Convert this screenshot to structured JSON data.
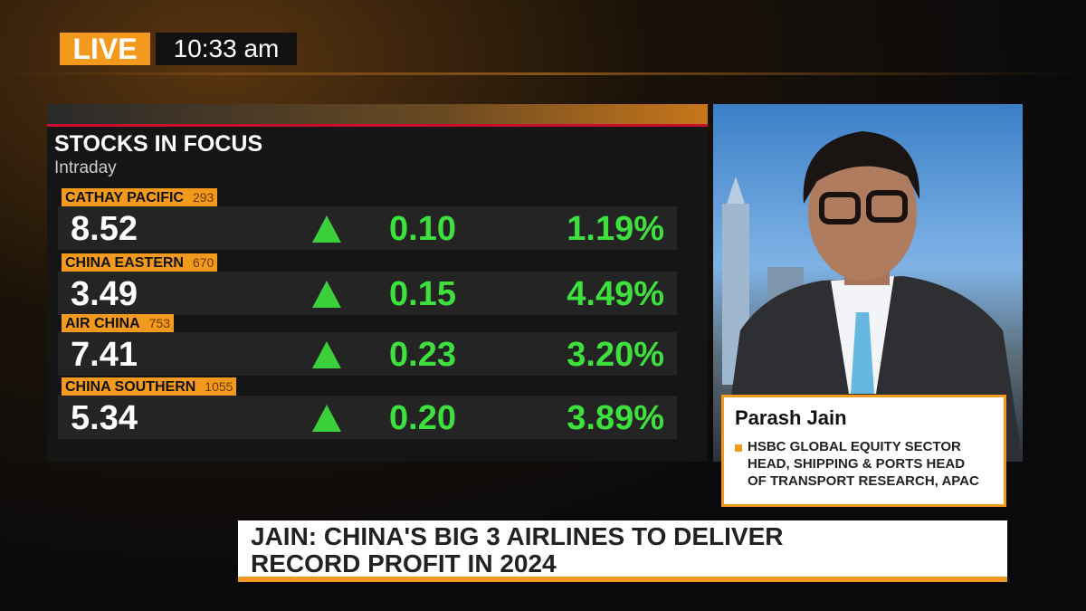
{
  "live": {
    "badge": "LIVE",
    "time": "10:33 am"
  },
  "panel": {
    "title": "STOCKS IN FOCUS",
    "subtitle": "Intraday",
    "stocks": [
      {
        "name": "CATHAY PACIFIC",
        "code": "293",
        "price": "8.52",
        "change": "0.10",
        "percent": "1.19%"
      },
      {
        "name": "CHINA EASTERN",
        "code": "670",
        "price": "3.49",
        "change": "0.15",
        "percent": "4.49%"
      },
      {
        "name": "AIR CHINA",
        "code": "753",
        "price": "7.41",
        "change": "0.23",
        "percent": "3.20%"
      },
      {
        "name": "CHINA SOUTHERN",
        "code": "1055",
        "price": "5.34",
        "change": "0.20",
        "percent": "3.89%"
      }
    ]
  },
  "guest": {
    "name": "Parash Jain",
    "title_lines": [
      "HSBC GLOBAL EQUITY SECTOR",
      "HEAD, SHIPPING & PORTS HEAD",
      "OF TRANSPORT RESEARCH, APAC"
    ]
  },
  "headline": {
    "lines": [
      "JAIN: CHINA'S BIG 3 AIRLINES TO DELIVER",
      "RECORD PROFIT IN 2024"
    ]
  }
}
